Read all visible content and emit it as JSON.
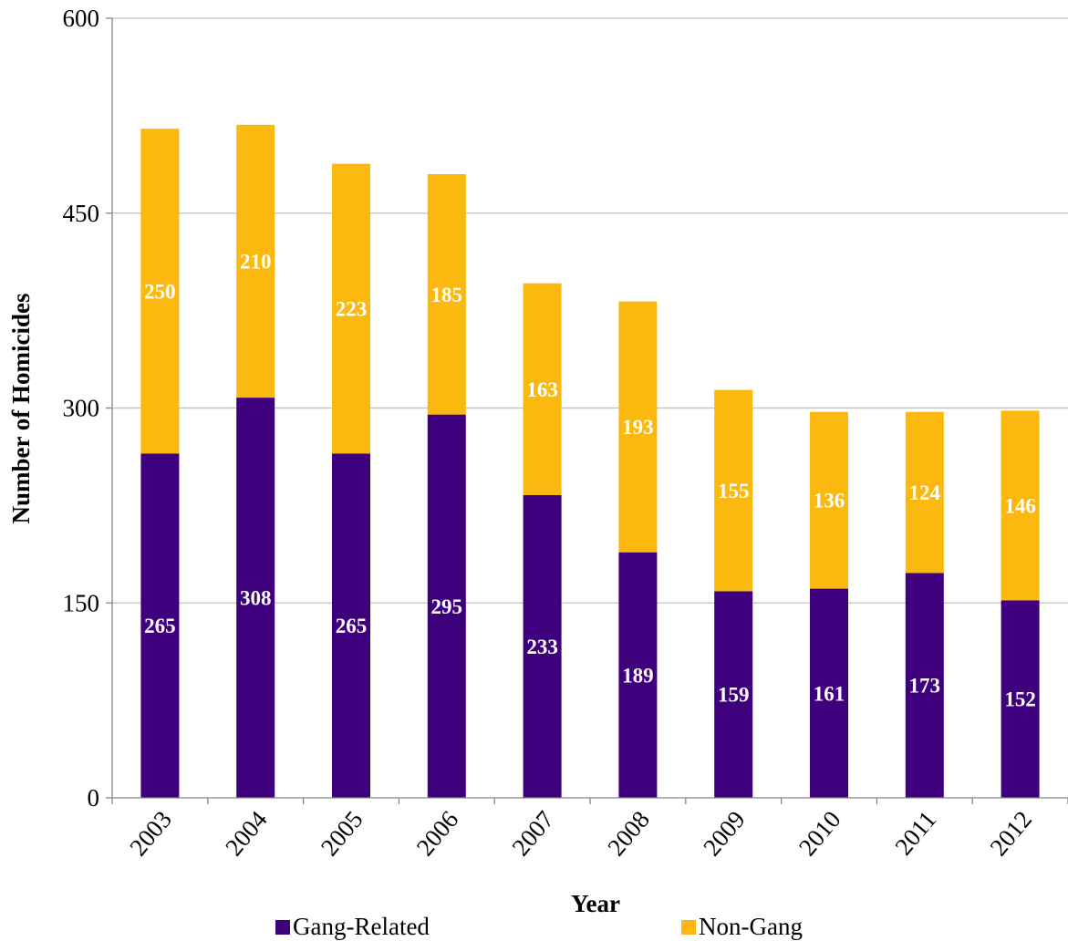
{
  "chart_data": {
    "type": "bar",
    "stacked": true,
    "categories": [
      "2003",
      "2004",
      "2005",
      "2006",
      "2007",
      "2008",
      "2009",
      "2010",
      "2011",
      "2012"
    ],
    "series": [
      {
        "name": "Gang-Related",
        "color": "#3f007d",
        "values": [
          265,
          308,
          265,
          295,
          233,
          189,
          159,
          161,
          173,
          152
        ]
      },
      {
        "name": "Non-Gang",
        "color": "#fbb80f",
        "values": [
          250,
          210,
          223,
          185,
          163,
          193,
          155,
          136,
          124,
          146
        ]
      }
    ],
    "xlabel": "Year",
    "ylabel": "Number of Homicides",
    "ylim": [
      0,
      600
    ],
    "yticks": [
      "0",
      "150",
      "300",
      "450",
      "600"
    ],
    "grid": true,
    "legend_position": "bottom"
  }
}
